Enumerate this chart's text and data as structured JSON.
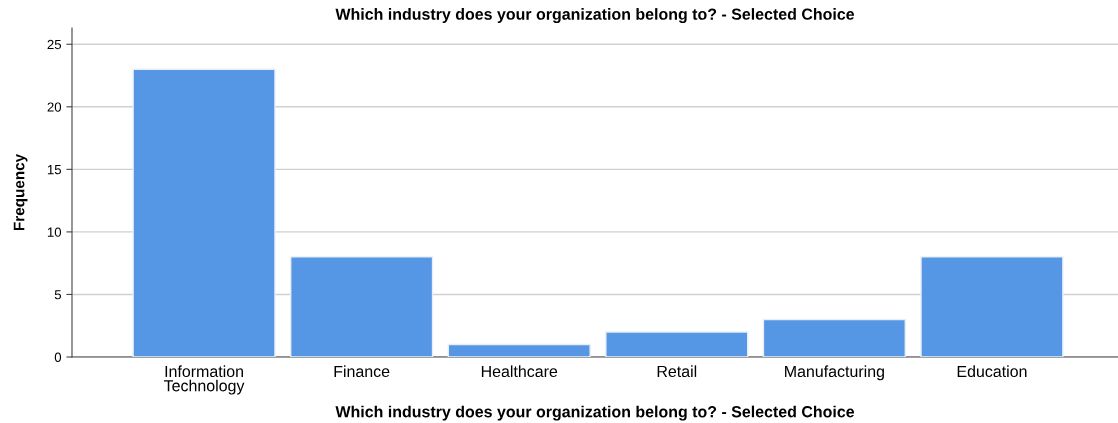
{
  "chart_data": {
    "type": "bar",
    "title": "Which industry does your organization belong to? - Selected Choice",
    "xlabel": "Which industry does your organization belong to? - Selected Choice",
    "ylabel": "Frequency",
    "categories": [
      "Information\nTechnology",
      "Finance",
      "Healthcare",
      "Retail",
      "Manufacturing",
      "Education"
    ],
    "values": [
      23,
      8,
      1,
      2,
      3,
      8
    ],
    "color": "#5596e5",
    "ylim": [
      0,
      26.3
    ],
    "yticks": [
      0,
      5,
      10,
      15,
      20,
      25
    ],
    "grid": "y",
    "legend": false
  }
}
